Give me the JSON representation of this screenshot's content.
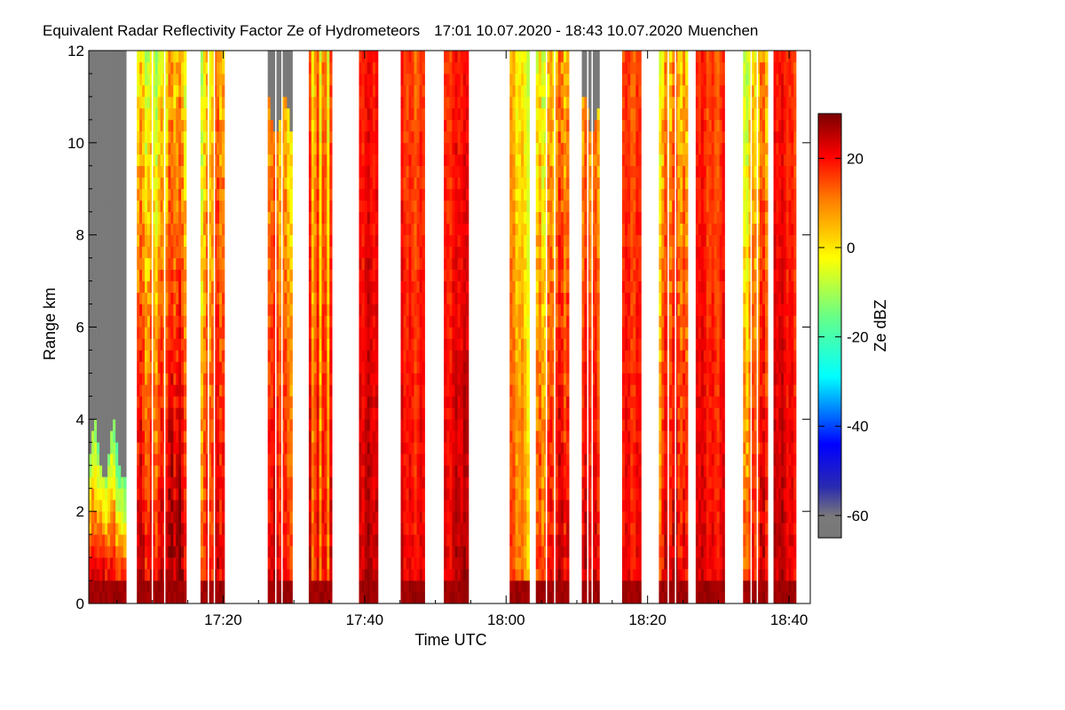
{
  "chart_data": {
    "type": "heatmap",
    "title": "Equivalent Radar Reflectivity Factor Ze of Hydrometeors",
    "time_range": "17:01 10.07.2020 - 18:43 10.07.2020",
    "location": "Muenchen",
    "xlabel": "Time UTC",
    "ylabel": "Range km",
    "xlim_minutes_utc": [
      1021,
      1123
    ],
    "ylim_km": [
      0,
      12
    ],
    "x_ticks": [
      {
        "minute": 1040,
        "label": "17:20"
      },
      {
        "minute": 1060,
        "label": "17:40"
      },
      {
        "minute": 1080,
        "label": "18:00"
      },
      {
        "minute": 1100,
        "label": "18:20"
      },
      {
        "minute": 1120,
        "label": "18:40"
      }
    ],
    "y_ticks": [
      {
        "value": 0,
        "label": "0"
      },
      {
        "value": 2,
        "label": "2"
      },
      {
        "value": 4,
        "label": "4"
      },
      {
        "value": 6,
        "label": "6"
      },
      {
        "value": 8,
        "label": "8"
      },
      {
        "value": 10,
        "label": "10"
      },
      {
        "value": 12,
        "label": "12"
      }
    ],
    "colorbar": {
      "label": "Ze dBZ",
      "range_dbz": [
        -65,
        30
      ],
      "ticks": [
        {
          "value": -60,
          "label": "-60"
        },
        {
          "value": -40,
          "label": "-40"
        },
        {
          "value": -20,
          "label": "-20"
        },
        {
          "value": 0,
          "label": "0"
        },
        {
          "value": 20,
          "label": "20"
        }
      ]
    },
    "segments": [
      {
        "start": 1021.0,
        "end": 1026.3,
        "profile": "low_cloud",
        "top_km": 3.2
      },
      {
        "start": 1027.8,
        "end": 1034.8,
        "profile": "deep_dissipating"
      },
      {
        "start": 1036.8,
        "end": 1040.2,
        "profile": "deep_mixed"
      },
      {
        "start": 1046.3,
        "end": 1049.8,
        "profile": "deep_gray_top"
      },
      {
        "start": 1052.1,
        "end": 1055.4,
        "profile": "deep_stripey"
      },
      {
        "start": 1059.2,
        "end": 1061.9,
        "profile": "deep_strong"
      },
      {
        "start": 1065.1,
        "end": 1068.5,
        "profile": "deep_strong"
      },
      {
        "start": 1071.2,
        "end": 1074.7,
        "profile": "deep_strong"
      },
      {
        "start": 1080.5,
        "end": 1083.3,
        "profile": "deep_strong_yellow_edges"
      },
      {
        "start": 1084.2,
        "end": 1088.9,
        "profile": "deep_mixed"
      },
      {
        "start": 1090.7,
        "end": 1093.2,
        "profile": "deep_gray_top"
      },
      {
        "start": 1096.4,
        "end": 1099.1,
        "profile": "deep_strong"
      },
      {
        "start": 1101.6,
        "end": 1105.7,
        "profile": "deep_mixed"
      },
      {
        "start": 1106.8,
        "end": 1110.9,
        "profile": "deep_strong"
      },
      {
        "start": 1113.5,
        "end": 1117.0,
        "profile": "deep_mixed"
      },
      {
        "start": 1117.8,
        "end": 1121.0,
        "profile": "deep_strong"
      }
    ]
  }
}
